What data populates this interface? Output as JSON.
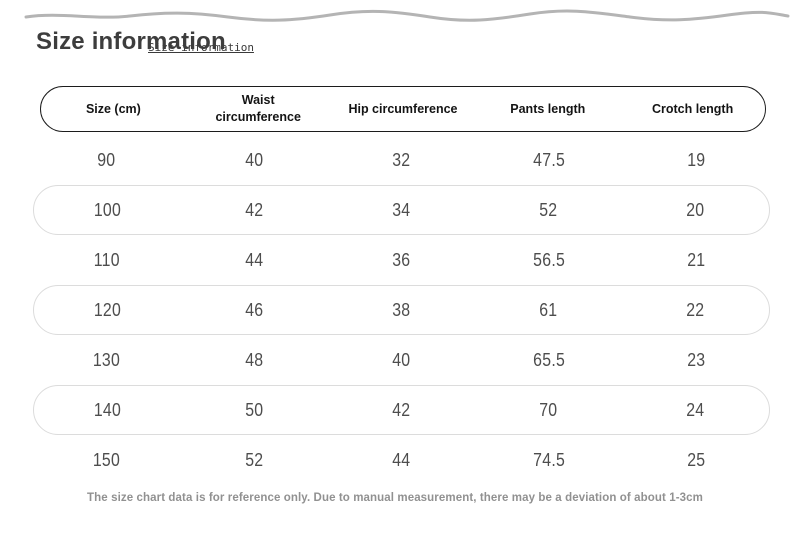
{
  "page": {
    "title": "Size information",
    "title_overlay": "Size information",
    "footer_note": "The size chart data is for reference only. Due to manual measurement, there may be a deviation of about 1-3cm"
  },
  "table": {
    "columns": [
      "Size (cm)",
      "Waist circumference",
      "Hip circumference",
      "Pants length",
      "Crotch length"
    ],
    "rows": [
      [
        "90",
        "40",
        "32",
        "47.5",
        "19"
      ],
      [
        "100",
        "42",
        "34",
        "52",
        "20"
      ],
      [
        "110",
        "44",
        "36",
        "56.5",
        "21"
      ],
      [
        "120",
        "46",
        "38",
        "61",
        "22"
      ],
      [
        "130",
        "48",
        "40",
        "65.5",
        "23"
      ],
      [
        "140",
        "50",
        "42",
        "70",
        "24"
      ],
      [
        "150",
        "52",
        "44",
        "74.5",
        "25"
      ]
    ]
  },
  "colors": {
    "divider": "#b4b4b4",
    "title_text": "#3d3d3d",
    "header_border": "#1c1c1c",
    "header_text": "#141414",
    "row_pill_border": "#dcdcdc",
    "cell_text": "#4d4d4d",
    "footer_text": "#919191"
  }
}
